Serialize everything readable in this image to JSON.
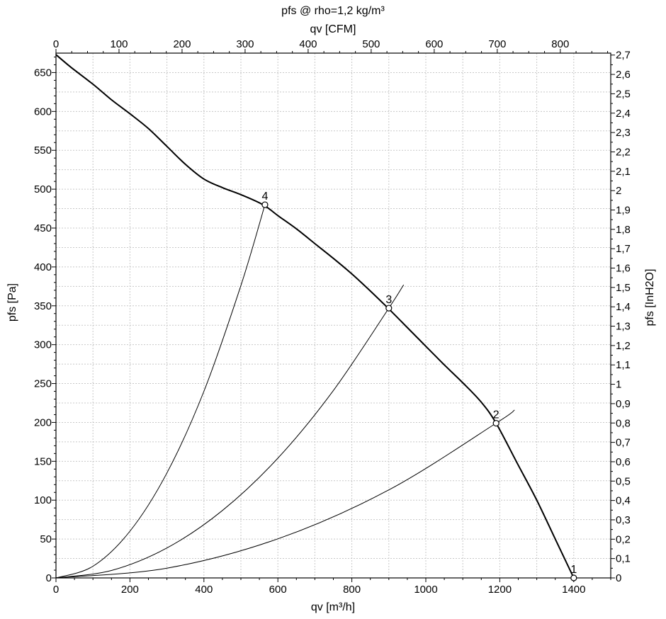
{
  "chart_data": {
    "type": "line",
    "title": "pfs @ rho=1,2 kg/m³",
    "top_axis": {
      "label": "qv [CFM]",
      "range": [
        0,
        880
      ],
      "ticks": [
        "0",
        "100",
        "200",
        "300",
        "400",
        "500",
        "600",
        "700",
        "800"
      ]
    },
    "bottom_axis": {
      "label": "qv [m³/h]",
      "range": [
        0,
        1500
      ],
      "ticks": [
        "0",
        "200",
        "400",
        "600",
        "800",
        "1000",
        "1200",
        "1400"
      ]
    },
    "left_axis": {
      "label": "pfs [Pa]",
      "range": [
        0,
        675
      ],
      "ticks": [
        "0",
        "50",
        "100",
        "150",
        "200",
        "250",
        "300",
        "350",
        "400",
        "450",
        "500",
        "550",
        "600",
        "650"
      ]
    },
    "right_axis": {
      "label": "pfs [InH2O]",
      "range": [
        0,
        2.71
      ],
      "ticks": [
        "0",
        "0,1",
        "0,2",
        "0,3",
        "0,4",
        "0,5",
        "0,6",
        "0,7",
        "0,8",
        "0,9",
        "1",
        "1,1",
        "1,2",
        "1,3",
        "1,4",
        "1,5",
        "1,6",
        "1,7",
        "1,8",
        "1,9",
        "2",
        "2,1",
        "2,2",
        "2,3",
        "2,4",
        "2,5",
        "2,6",
        "2,7"
      ]
    },
    "grid": true,
    "fan_curve": {
      "x": [
        0,
        40,
        100,
        150,
        200,
        250,
        300,
        350,
        400,
        450,
        500,
        560,
        600,
        650,
        700,
        750,
        800,
        850,
        900,
        950,
        1000,
        1050,
        1100,
        1150,
        1190,
        1250,
        1300,
        1350,
        1400
      ],
      "y": [
        673,
        657,
        635,
        615,
        597,
        578,
        555,
        532,
        513,
        502,
        493,
        480,
        466,
        449,
        430,
        411,
        391,
        369,
        346,
        322,
        298,
        274,
        251,
        226,
        199,
        145,
        100,
        50,
        0
      ]
    },
    "system_curves": [
      {
        "x": [
          0,
          300,
          600,
          900,
          1190,
          1240
        ],
        "y": [
          0,
          12.6,
          50.3,
          113.2,
          199,
          216
        ]
      },
      {
        "x": [
          0,
          150,
          300,
          450,
          600,
          750,
          900,
          940
        ],
        "y": [
          0,
          9.6,
          38.5,
          86.7,
          154,
          241,
          347,
          377
        ]
      },
      {
        "x": [
          0,
          100,
          200,
          300,
          400,
          500,
          565
        ],
        "y": [
          0,
          15,
          60.1,
          135,
          240,
          376,
          480
        ]
      }
    ],
    "operating_points": [
      {
        "label": "1",
        "x": 1400,
        "y": 0
      },
      {
        "label": "2",
        "x": 1190,
        "y": 199
      },
      {
        "label": "3",
        "x": 900,
        "y": 347
      },
      {
        "label": "4",
        "x": 565,
        "y": 480
      }
    ]
  }
}
